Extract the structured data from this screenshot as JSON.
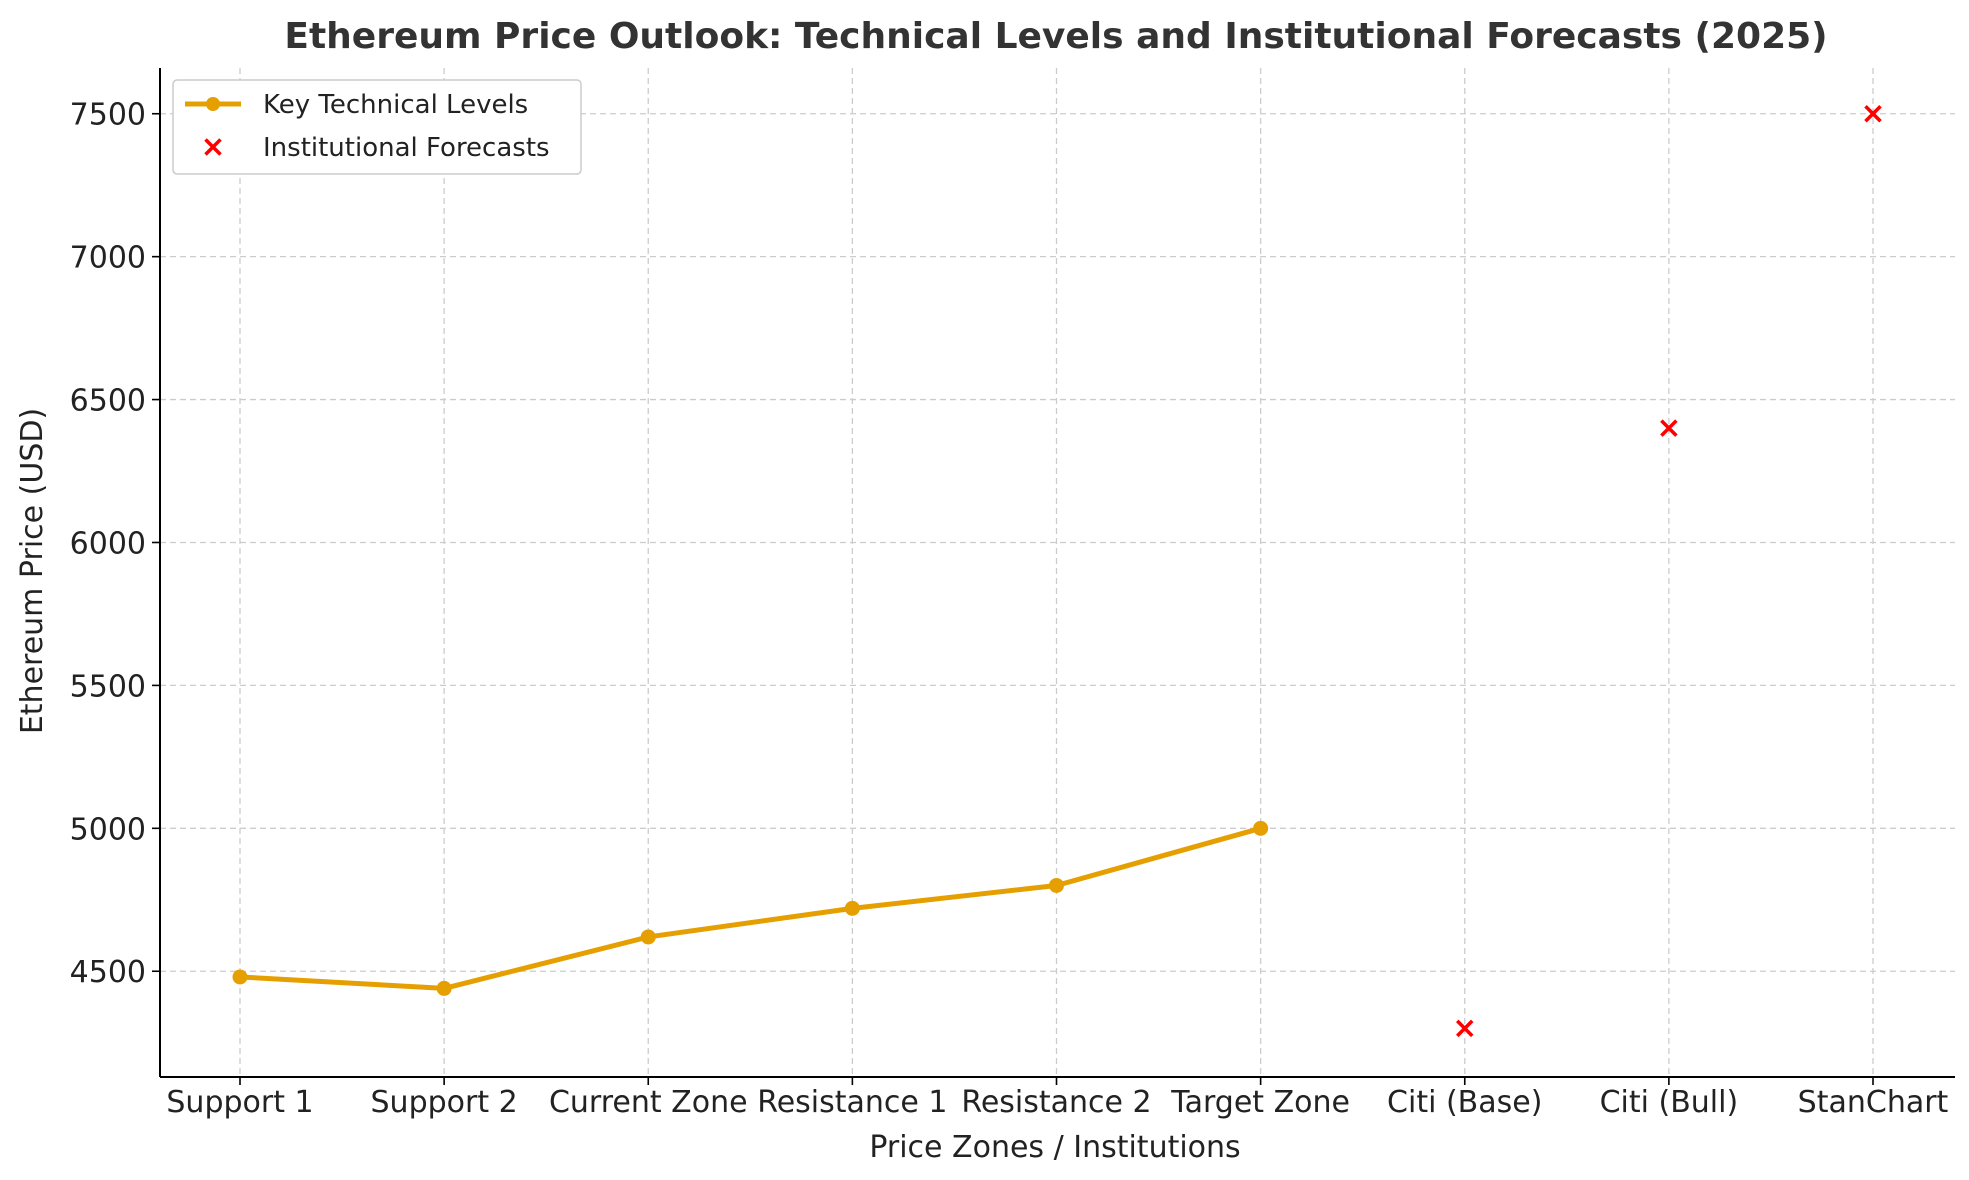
{
  "chart_data": {
    "type": "line",
    "title": "Ethereum Price Outlook: Technical Levels and Institutional Forecasts (2025)",
    "xlabel": "Price Zones / Institutions",
    "ylabel": "Ethereum Price (USD)",
    "categories": [
      "Support 1",
      "Support 2",
      "Current Zone",
      "Resistance 1",
      "Resistance 2",
      "Target Zone",
      "Citi (Base)",
      "Citi (Bull)",
      "StanChart"
    ],
    "ylim": [
      4130,
      7660
    ],
    "yticks": [
      4500,
      5000,
      5500,
      6000,
      6500,
      7000,
      7500
    ],
    "yticklabels": [
      "4500",
      "5000",
      "5500",
      "6000",
      "6500",
      "7000",
      "7500"
    ],
    "grid": true,
    "legend_position": "top-left",
    "series": [
      {
        "name": "Key Technical Levels",
        "kind": "line",
        "color": "#E69F00",
        "marker": "circle",
        "points": [
          {
            "category": "Support 1",
            "value": 4480
          },
          {
            "category": "Support 2",
            "value": 4440
          },
          {
            "category": "Current Zone",
            "value": 4620
          },
          {
            "category": "Resistance 1",
            "value": 4720
          },
          {
            "category": "Resistance 2",
            "value": 4800
          },
          {
            "category": "Target Zone",
            "value": 5000
          }
        ]
      },
      {
        "name": "Institutional Forecasts",
        "kind": "scatter",
        "color": "#FF0000",
        "marker": "x",
        "points": [
          {
            "category": "Citi (Base)",
            "value": 4300
          },
          {
            "category": "Citi (Bull)",
            "value": 6400
          },
          {
            "category": "StanChart",
            "value": 7500
          }
        ]
      }
    ]
  }
}
